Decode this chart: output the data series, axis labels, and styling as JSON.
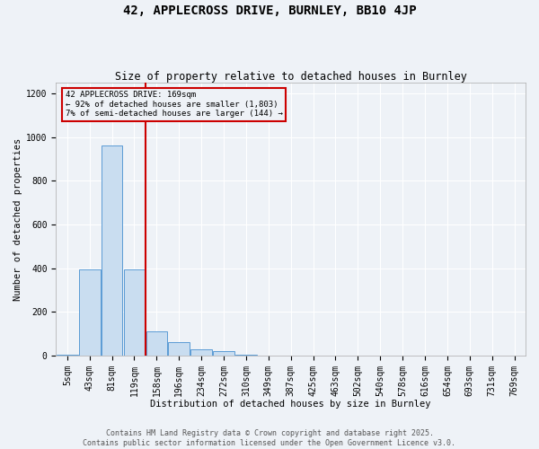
{
  "title": "42, APPLECROSS DRIVE, BURNLEY, BB10 4JP",
  "subtitle": "Size of property relative to detached houses in Burnley",
  "xlabel": "Distribution of detached houses by size in Burnley",
  "ylabel": "Number of detached properties",
  "categories": [
    "5sqm",
    "43sqm",
    "81sqm",
    "119sqm",
    "158sqm",
    "196sqm",
    "234sqm",
    "272sqm",
    "310sqm",
    "349sqm",
    "387sqm",
    "425sqm",
    "463sqm",
    "502sqm",
    "540sqm",
    "578sqm",
    "616sqm",
    "654sqm",
    "693sqm",
    "731sqm",
    "769sqm"
  ],
  "bar_values": [
    3,
    395,
    960,
    395,
    110,
    60,
    30,
    20,
    5,
    0,
    0,
    0,
    0,
    0,
    0,
    0,
    0,
    0,
    0,
    0,
    0
  ],
  "bar_color": "#c9ddf0",
  "bar_edge_color": "#5b9bd5",
  "ylim": [
    0,
    1250
  ],
  "yticks": [
    0,
    200,
    400,
    600,
    800,
    1000,
    1200
  ],
  "property_line_x": 3.5,
  "property_line_color": "#cc0000",
  "annotation_text": "42 APPLECROSS DRIVE: 169sqm\n← 92% of detached houses are smaller (1,803)\n7% of semi-detached houses are larger (144) →",
  "annotation_box_color": "#cc0000",
  "footer_line1": "Contains HM Land Registry data © Crown copyright and database right 2025.",
  "footer_line2": "Contains public sector information licensed under the Open Government Licence v3.0.",
  "bg_color": "#eef2f7",
  "grid_color": "#ffffff",
  "title_fontsize": 10,
  "subtitle_fontsize": 8.5,
  "axis_label_fontsize": 7.5,
  "tick_fontsize": 7,
  "annotation_fontsize": 6.5,
  "footer_fontsize": 6
}
